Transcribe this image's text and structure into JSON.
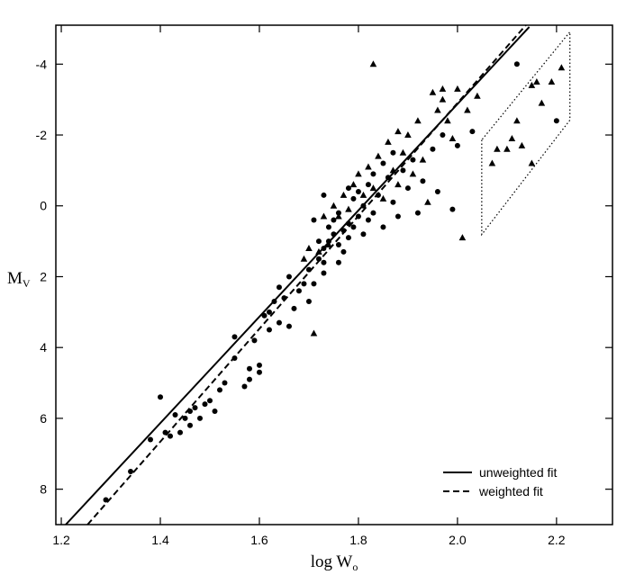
{
  "chart_data": {
    "type": "scatter",
    "xlabel": "log W",
    "xlabel_sub": "o",
    "ylabel": "M",
    "ylabel_sub": "V",
    "xlim": [
      1.189,
      2.313
    ],
    "ylim": [
      9.0,
      -5.1
    ],
    "xticks": [
      1.2,
      1.4,
      1.6,
      1.8,
      {
        "value": 2,
        "label": "2.0"
      },
      2.2
    ],
    "yticks": [
      -4,
      -2,
      0,
      2,
      4,
      6,
      8
    ],
    "legend": "lower right",
    "series": [
      {
        "marker": "circle",
        "color": "#000000",
        "x": [
          1.29,
          1.34,
          1.38,
          1.4,
          1.41,
          1.42,
          1.43,
          1.44,
          1.45,
          1.46,
          1.46,
          1.47,
          1.48,
          1.49,
          1.5,
          1.51,
          1.52,
          1.53,
          1.55,
          1.55,
          1.57,
          1.58,
          1.58,
          1.59,
          1.6,
          1.6,
          1.61,
          1.62,
          1.62,
          1.63,
          1.64,
          1.64,
          1.65,
          1.66,
          1.66,
          1.67,
          1.68,
          1.69,
          1.7,
          1.7,
          1.71,
          1.72,
          1.72,
          1.73,
          1.73,
          1.74,
          1.74,
          1.75,
          1.75,
          1.76,
          1.76,
          1.77,
          1.77,
          1.78,
          1.78,
          1.79,
          1.79,
          1.8,
          1.8,
          1.81,
          1.81,
          1.82,
          1.82,
          1.83,
          1.83,
          1.84,
          1.85,
          1.85,
          1.86,
          1.87,
          1.87,
          1.88,
          1.89,
          1.9,
          1.91,
          1.92,
          1.93,
          1.95,
          1.96,
          1.97,
          1.99,
          2.0,
          2.03,
          2.12,
          2.2,
          1.76,
          1.73,
          1.71,
          1.73,
          1.78
        ],
        "values": [
          8.3,
          7.5,
          6.6,
          5.4,
          6.4,
          6.5,
          5.9,
          6.4,
          6.0,
          5.8,
          6.2,
          5.7,
          6.0,
          5.6,
          5.5,
          5.8,
          5.2,
          5.0,
          3.7,
          4.3,
          5.1,
          4.6,
          4.9,
          3.8,
          4.7,
          4.5,
          3.1,
          3.5,
          3.0,
          2.7,
          3.3,
          2.3,
          2.6,
          3.4,
          2.0,
          2.9,
          2.4,
          2.2,
          2.7,
          1.8,
          2.2,
          1.5,
          1.0,
          1.6,
          1.2,
          0.6,
          1.0,
          0.8,
          0.4,
          1.1,
          0.2,
          0.7,
          1.3,
          0.5,
          0.9,
          -0.2,
          0.6,
          0.3,
          -0.4,
          0.8,
          0.0,
          -0.6,
          0.4,
          -0.9,
          0.2,
          -0.3,
          -1.2,
          0.6,
          -0.8,
          -0.1,
          -1.5,
          0.3,
          -1.0,
          -0.5,
          -1.3,
          0.2,
          -0.7,
          -1.6,
          -0.4,
          -2.0,
          0.1,
          -1.7,
          -2.1,
          -4.0,
          -2.4,
          1.6,
          1.9,
          0.4,
          -0.3,
          -0.5
        ]
      },
      {
        "marker": "triangle",
        "color": "#000000",
        "x": [
          1.71,
          1.7,
          1.72,
          1.74,
          1.76,
          1.77,
          1.78,
          1.79,
          1.8,
          1.81,
          1.82,
          1.83,
          1.83,
          1.84,
          1.85,
          1.86,
          1.87,
          1.88,
          1.88,
          1.89,
          1.9,
          1.91,
          1.92,
          1.93,
          1.94,
          1.95,
          1.96,
          1.97,
          1.98,
          1.99,
          1.97,
          2.0,
          2.02,
          2.04,
          2.01,
          1.75,
          1.73,
          1.69,
          2.07,
          2.08,
          2.1,
          2.11,
          2.12,
          2.13,
          2.15,
          2.15,
          2.16,
          2.17,
          2.19,
          2.21
        ],
        "values": [
          3.6,
          1.2,
          1.3,
          1.1,
          0.3,
          -0.3,
          0.1,
          -0.6,
          -0.9,
          -0.3,
          -1.1,
          -4.0,
          -0.5,
          -1.4,
          -0.2,
          -1.8,
          -1.0,
          -2.1,
          -0.6,
          -1.5,
          -2.0,
          -0.9,
          -2.4,
          -1.3,
          -0.1,
          -3.2,
          -2.7,
          -3.0,
          -2.4,
          -1.9,
          -3.3,
          -3.3,
          -2.7,
          -3.1,
          0.9,
          0.0,
          0.3,
          1.5,
          -1.2,
          -1.6,
          -1.6,
          -1.9,
          -2.4,
          -1.7,
          -1.2,
          -3.4,
          -3.5,
          -2.9,
          -3.5,
          -3.9
        ]
      },
      {
        "name": "unweighted fit",
        "line": "solid",
        "color": "#000000",
        "x": [
          1.209,
          2.145
        ],
        "values": [
          9.0,
          -5.05
        ]
      },
      {
        "name": "weighted fit",
        "line": "dashed",
        "color": "#000000",
        "x": [
          1.253,
          2.138
        ],
        "values": [
          9.0,
          -5.1
        ]
      }
    ],
    "region": {
      "line": "dotted",
      "x": [
        2.049,
        2.049,
        2.227,
        2.227
      ],
      "values": [
        -1.86,
        0.81,
        -2.42,
        -4.91
      ]
    }
  }
}
